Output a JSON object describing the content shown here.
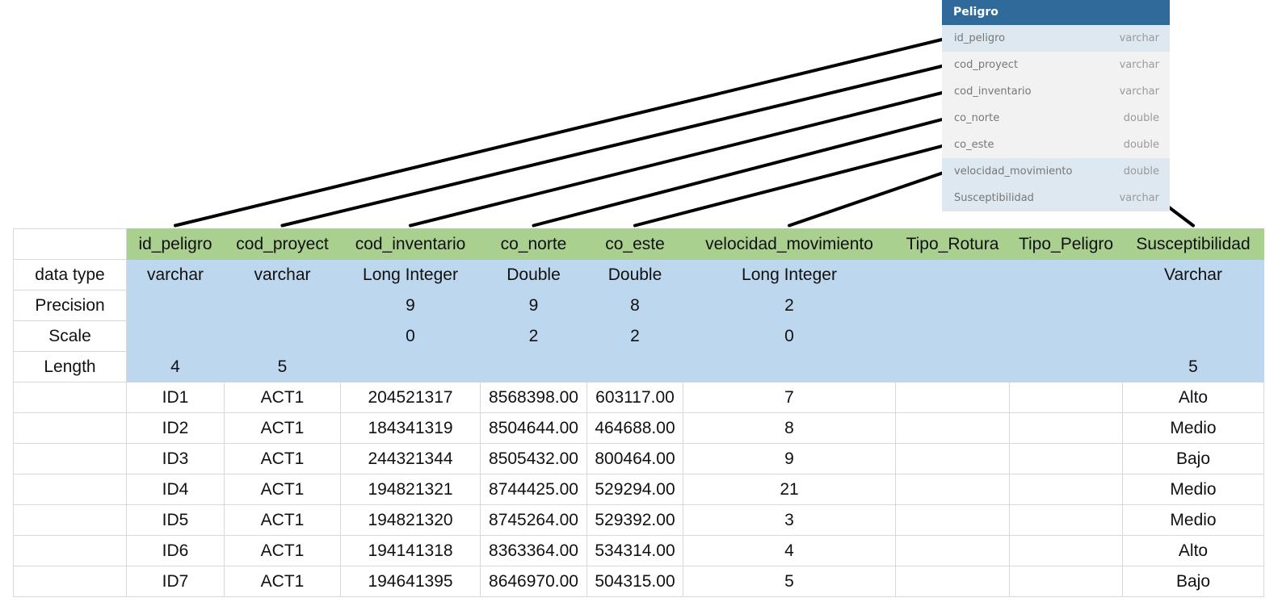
{
  "entity": {
    "title": "Peligro",
    "fields": [
      {
        "name": "id_peligro",
        "type": "varchar",
        "highlight": true
      },
      {
        "name": "cod_proyect",
        "type": "varchar",
        "highlight": false
      },
      {
        "name": "cod_inventario",
        "type": "varchar",
        "highlight": false
      },
      {
        "name": "co_norte",
        "type": "double",
        "highlight": false
      },
      {
        "name": "co_este",
        "type": "double",
        "highlight": false
      },
      {
        "name": "velocidad_movimiento",
        "type": "double",
        "highlight": true
      },
      {
        "name": "Susceptibilidad",
        "type": "varchar",
        "highlight": true
      }
    ]
  },
  "table": {
    "columns": [
      "id_peligro",
      "cod_proyect",
      "cod_inventario",
      "co_norte",
      "co_este",
      "velocidad_movimiento",
      "Tipo_Rotura",
      "Tipo_Peligro",
      "Susceptibilidad"
    ],
    "meta_rows": [
      {
        "label": "data type",
        "values": [
          "varchar",
          "varchar",
          "Long Integer",
          "Double",
          "Double",
          "Long Integer",
          "",
          "",
          "Varchar"
        ]
      },
      {
        "label": "Precision",
        "values": [
          "",
          "",
          "9",
          "9",
          "8",
          "2",
          "",
          "",
          ""
        ]
      },
      {
        "label": "Scale",
        "values": [
          "",
          "",
          "0",
          "2",
          "2",
          "0",
          "",
          "",
          ""
        ]
      },
      {
        "label": "Length",
        "values": [
          "4",
          "5",
          "",
          "",
          "",
          "",
          "",
          "",
          "5"
        ]
      }
    ],
    "rows": [
      [
        "ID1",
        "ACT1",
        "204521317",
        "8568398.00",
        "603117.00",
        "7",
        "",
        "",
        "Alto"
      ],
      [
        "ID2",
        "ACT1",
        "184341319",
        "8504644.00",
        "464688.00",
        "8",
        "",
        "",
        "Medio"
      ],
      [
        "ID3",
        "ACT1",
        "244321344",
        "8505432.00",
        "800464.00",
        "9",
        "",
        "",
        "Bajo"
      ],
      [
        "ID4",
        "ACT1",
        "194821321",
        "8744425.00",
        "529294.00",
        "21",
        "",
        "",
        "Medio"
      ],
      [
        "ID5",
        "ACT1",
        "194821320",
        "8745264.00",
        "529392.00",
        "3",
        "",
        "",
        "Medio"
      ],
      [
        "ID6",
        "ACT1",
        "194141318",
        "8363364.00",
        "534314.00",
        "4",
        "",
        "",
        "Alto"
      ],
      [
        "ID7",
        "ACT1",
        "194641395",
        "8646970.00",
        "504315.00",
        "5",
        "",
        "",
        "Bajo"
      ]
    ]
  },
  "links": [
    {
      "field": "id_peligro",
      "column": "id_peligro"
    },
    {
      "field": "cod_proyect",
      "column": "cod_proyect"
    },
    {
      "field": "cod_inventario",
      "column": "cod_inventario"
    },
    {
      "field": "co_norte",
      "column": "co_norte"
    },
    {
      "field": "co_este",
      "column": "co_este"
    },
    {
      "field": "velocidad_movimiento",
      "column": "velocidad_movimiento"
    },
    {
      "field": "Susceptibilidad",
      "column": "Susceptibilidad"
    }
  ]
}
